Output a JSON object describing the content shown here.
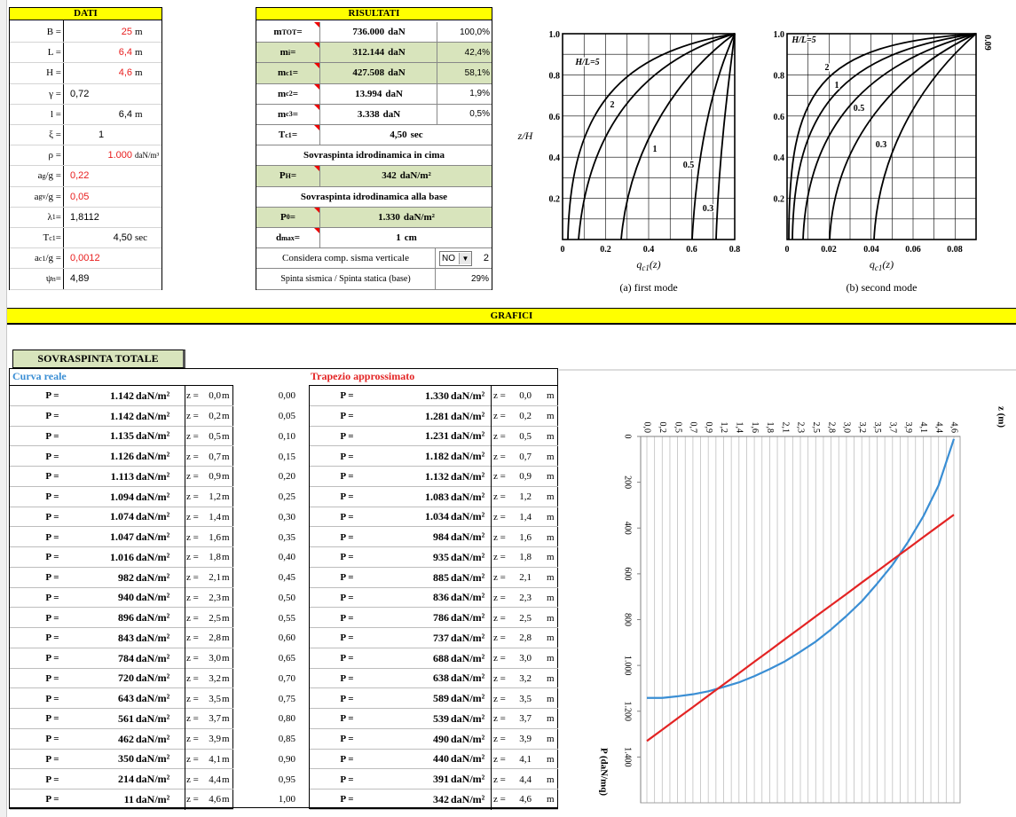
{
  "dati": {
    "title": "DATI",
    "rows": [
      {
        "label": "B =",
        "value": "25",
        "unit": "m"
      },
      {
        "label": "L =",
        "value": "6,4",
        "unit": "m"
      },
      {
        "label": "H =",
        "value": "4,6",
        "unit": "m"
      },
      {
        "label": "γ =",
        "value": "0,72"
      },
      {
        "label": "l =",
        "value": "6,4",
        "unit": "m"
      },
      {
        "label": "ξ =",
        "value": "1"
      },
      {
        "label": "ρ =",
        "value": "1.000",
        "unit": "daN/m³"
      },
      {
        "label": "a",
        "sub": "g",
        "suffix": "/g =",
        "value": "0,22"
      },
      {
        "label": "a",
        "sub": "gv",
        "suffix": "/g =",
        "value": "0,05"
      },
      {
        "label": "λ",
        "sub": "1",
        "suffix": " =",
        "value": "1,8112"
      },
      {
        "label": "T",
        "sub": "c1",
        "suffix": " =",
        "value": "4,50",
        "unit": "sec"
      },
      {
        "label": "a",
        "sub": "c1",
        "suffix": "/g =",
        "value": "0,0012"
      },
      {
        "label": "ψ",
        "sub": "n",
        "suffix": " =",
        "value": "4,89"
      }
    ]
  },
  "risultati": {
    "title": "RISULTATI",
    "rows": [
      {
        "label": "m",
        "sub": "TOT",
        "suffix": " =",
        "value": "736.000",
        "unit": "daN",
        "pct": "100,0%"
      },
      {
        "label": "m",
        "sub": "i",
        "suffix": " =",
        "value": "312.144",
        "unit": "daN",
        "pct": "42,4%"
      },
      {
        "label": "m",
        "sub": "c1",
        "suffix": " =",
        "value": "427.508",
        "unit": "daN",
        "pct": "58,1%"
      },
      {
        "label": "m",
        "sub": "c2",
        "suffix": " =",
        "value": "13.994",
        "unit": "daN",
        "pct": "1,9%"
      },
      {
        "label": "m",
        "sub": "c3",
        "suffix": " =",
        "value": "3.338",
        "unit": "daN",
        "pct": "0,5%"
      },
      {
        "label": "T",
        "sub": "c1",
        "suffix": " =",
        "value": "4,50",
        "unit": "sec"
      },
      {
        "heading": "Sovraspinta idrodinamica in cima"
      },
      {
        "label": "P",
        "sub": "H",
        "suffix": " =",
        "value": "342",
        "unit": "daN/m²"
      },
      {
        "heading": "Sovraspinta idrodinamica alla base"
      },
      {
        "label": "P",
        "sub": "0",
        "suffix": " =",
        "value": "1.330",
        "unit": "daN/m²"
      },
      {
        "label": "d",
        "sub": "max",
        "suffix": " =",
        "value": "1",
        "unit": "cm"
      },
      {
        "text": "Considera comp. sisma verticale",
        "select": "NO",
        "extra": "2"
      },
      {
        "text": "Spinta sismica / Spinta statica (base)",
        "pct": "29%"
      }
    ]
  },
  "figures": [
    {
      "caption": "(a) first mode",
      "xlabel": "q",
      "xsub": "c1",
      "xsuffix": "(z)",
      "ylabel": "z/H",
      "xticks": [
        "0",
        "0.2",
        "0.4",
        "0.6",
        "0.8"
      ],
      "yticks": [
        "0.2",
        "0.4",
        "0.6",
        "0.8",
        "1.0"
      ],
      "curve_labels": [
        "H/L=5",
        "2",
        "1",
        "0.5",
        "0.3"
      ]
    },
    {
      "caption": "(b) second mode",
      "xlabel": "q",
      "xsub": "c1",
      "xsuffix": "(z)",
      "xticks": [
        "0",
        "0.02",
        "0.04",
        "0.06",
        "0.08"
      ],
      "yticks": [
        "0.2",
        "0.4",
        "0.6",
        "0.8",
        "1.0"
      ],
      "curve_labels": [
        "H/L=5",
        "2",
        "1",
        "0.5",
        "0.3"
      ],
      "edge_label": "0.09"
    }
  ],
  "banner": "GRAFICI",
  "tab": "SOVRASPINTA TOTALE",
  "table": {
    "p_label": "P =",
    "unit": "daN/m²",
    "z_label": "z =",
    "z_unit": "m",
    "fractions": [
      "0,00",
      "0,05",
      "0,10",
      "0,15",
      "0,20",
      "0,25",
      "0,30",
      "0,35",
      "0,40",
      "0,45",
      "0,50",
      "0,55",
      "0,60",
      "0,65",
      "0,70",
      "0,75",
      "0,80",
      "0,85",
      "0,90",
      "0,95",
      "1,00"
    ]
  },
  "chart_data": {
    "type": "line",
    "categories": [
      "0,0",
      "0,2",
      "0,5",
      "0,7",
      "0,9",
      "1,2",
      "1,4",
      "1,6",
      "1,8",
      "2,1",
      "2,3",
      "2,5",
      "2,8",
      "3,0",
      "3,2",
      "3,5",
      "3,7",
      "3,9",
      "4,1",
      "4,4",
      "4,6"
    ],
    "series": [
      {
        "name": "Curva reale",
        "color": "#3a8ed4",
        "values": [
          1142,
          1142,
          1135,
          1126,
          1113,
          1094,
          1074,
          1047,
          1016,
          982,
          940,
          896,
          843,
          784,
          720,
          643,
          561,
          462,
          350,
          214,
          11
        ],
        "value_labels": [
          "1.142",
          "1.142",
          "1.135",
          "1.126",
          "1.113",
          "1.094",
          "1.074",
          "1.047",
          "1.016",
          "982",
          "940",
          "896",
          "843",
          "784",
          "720",
          "643",
          "561",
          "462",
          "350",
          "214",
          "11"
        ]
      },
      {
        "name": "Trapezio approssimato",
        "color": "#e32424",
        "values": [
          1330,
          1281,
          1231,
          1182,
          1132,
          1083,
          1034,
          984,
          935,
          885,
          836,
          786,
          737,
          688,
          638,
          589,
          539,
          490,
          440,
          391,
          342
        ],
        "value_labels": [
          "1.330",
          "1.281",
          "1.231",
          "1.182",
          "1.132",
          "1.083",
          "1.034",
          "984",
          "935",
          "885",
          "836",
          "786",
          "737",
          "688",
          "638",
          "589",
          "539",
          "490",
          "440",
          "391",
          "342"
        ]
      }
    ],
    "xlabel": "z (m)",
    "ylabel": "P (daN/mq)",
    "ylim": [
      0,
      1600
    ],
    "yticks": [
      0,
      200,
      400,
      600,
      800,
      {
        "value": 1000,
        "label": "1.000"
      },
      {
        "value": 1200,
        "label": "1.200"
      },
      {
        "value": 1400,
        "label": "1.400"
      }
    ],
    "y_inverted": true
  }
}
